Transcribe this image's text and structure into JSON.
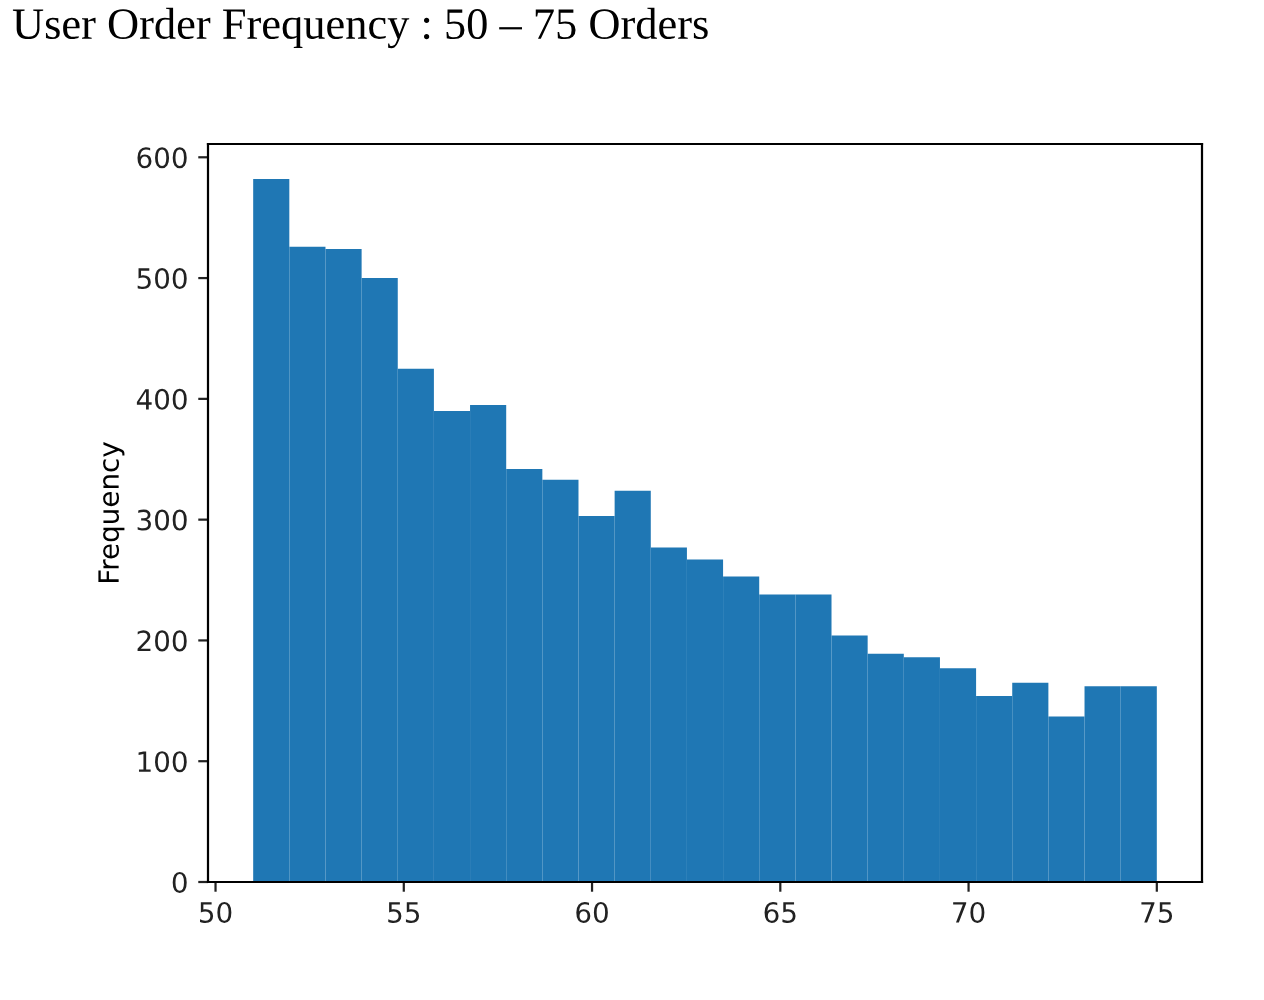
{
  "chart_data": {
    "type": "histogram",
    "title": "User Order Frequency : 50 – 75 Orders",
    "ylabel": "Frequency",
    "color": "#1f77b4",
    "bins": [
      51,
      51.96,
      52.92,
      53.88,
      54.84,
      55.8,
      56.76,
      57.72,
      58.68,
      59.64,
      60.6,
      61.56,
      62.52,
      63.48,
      64.44,
      65.4,
      66.36,
      67.32,
      68.28,
      69.24,
      70.2,
      71.16,
      72.12,
      73.08,
      74.04,
      75
    ],
    "values": [
      582,
      526,
      524,
      500,
      425,
      390,
      395,
      342,
      333,
      303,
      324,
      277,
      267,
      253,
      238,
      238,
      204,
      189,
      186,
      177,
      154,
      165,
      137,
      162,
      162
    ],
    "xlim": [
      49.8,
      76.2
    ],
    "xticks": [
      50,
      55,
      60,
      65,
      70,
      75
    ],
    "ylim": [
      0,
      611
    ],
    "yticks": [
      0,
      100,
      200,
      300,
      400,
      500,
      600
    ],
    "grid": false
  }
}
